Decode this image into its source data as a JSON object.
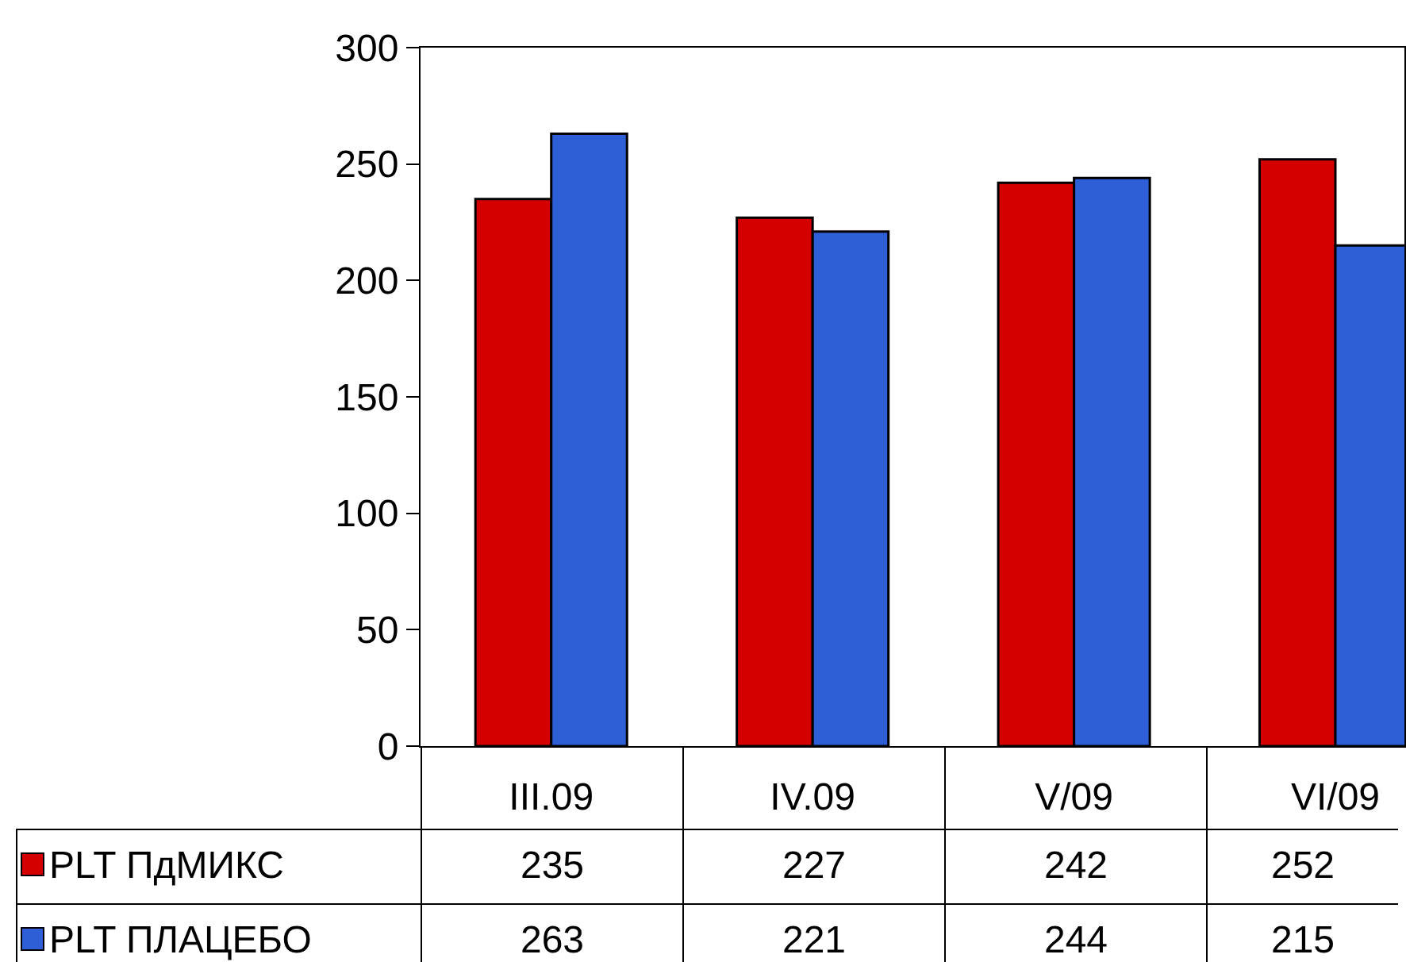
{
  "chart_data": {
    "type": "bar",
    "categories": [
      "III.09",
      "IV.09",
      "V/09",
      "VI/09"
    ],
    "series": [
      {
        "name": "PLT ПдМИКС",
        "color": "#d40000",
        "values": [
          235,
          227,
          242,
          252
        ]
      },
      {
        "name": "PLT ПЛАЦЕБО",
        "color": "#2f5fd6",
        "values": [
          263,
          221,
          244,
          215
        ]
      }
    ],
    "ylim": [
      0,
      300
    ],
    "yticks": [
      0,
      50,
      100,
      150,
      200,
      250,
      300
    ],
    "grid": false,
    "legend": "bottom left",
    "data_labels": true
  }
}
